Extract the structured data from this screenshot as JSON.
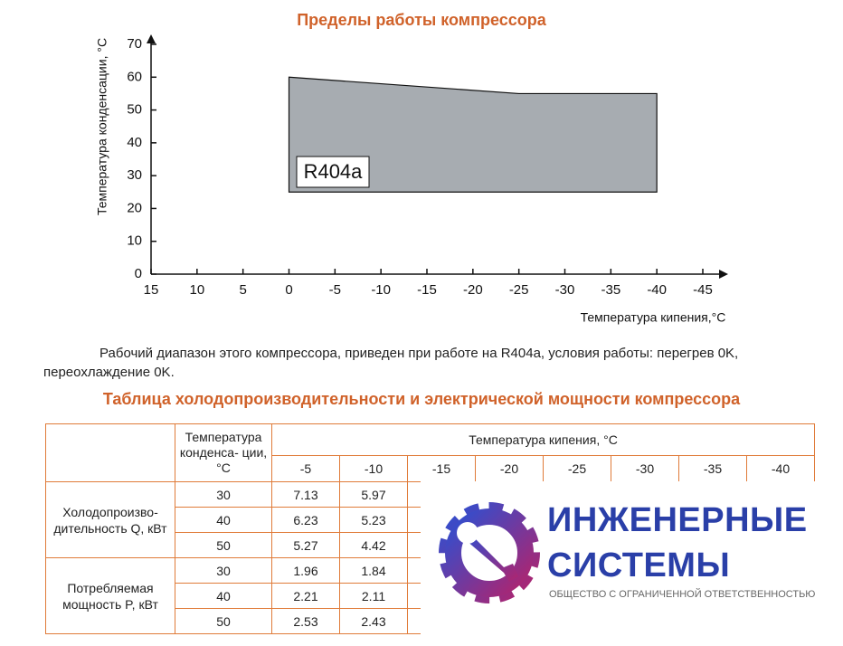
{
  "title": "Пределы работы компрессора",
  "chart_data": {
    "type": "polygon",
    "x_label": "Температура кипения,°C",
    "y_label": "Температура конденсации, °C",
    "x": [
      0,
      -25,
      -40,
      -40,
      0
    ],
    "values": [
      60,
      55,
      55,
      25,
      25
    ],
    "color": "#a7acb1",
    "annotation": "R404a",
    "xlim": [
      15,
      -45
    ],
    "ylim": [
      0,
      70
    ],
    "xticks": [
      15,
      10,
      5,
      0,
      -5,
      -10,
      -15,
      -20,
      -25,
      -30,
      -35,
      -40,
      -45
    ],
    "yticks": [
      0,
      10,
      20,
      30,
      40,
      50,
      60,
      70
    ]
  },
  "note": "Рабочий диапазон этого компрессора, приведен при работе на R404a, условия работы: перегрев 0K, переохлаждение 0K.",
  "table": {
    "title": "Таблица холодопроизводительности и электрической мощности компрессора",
    "condensation_header": "Температура конденса- ции, °C",
    "evaporation_header": "Температура кипения, °C",
    "columns": [
      -5,
      -10,
      -15,
      -20,
      -25,
      -30,
      -35,
      -40
    ],
    "groups": [
      {
        "label": "Холодопроизво- дительность Q, кВт",
        "rows": [
          {
            "tc": 30,
            "values": [
              7.13,
              5.97
            ]
          },
          {
            "tc": 40,
            "values": [
              6.23,
              5.23
            ]
          },
          {
            "tc": 50,
            "values": [
              5.27,
              4.42
            ]
          }
        ]
      },
      {
        "label": "Потребляемая мощность P, кВт",
        "rows": [
          {
            "tc": 30,
            "values": [
              1.96,
              1.84
            ]
          },
          {
            "tc": 40,
            "values": [
              2.21,
              2.11
            ]
          },
          {
            "tc": 50,
            "values": [
              2.53,
              2.43
            ]
          }
        ]
      }
    ]
  },
  "logo": {
    "line1": "ИНЖЕНЕРНЫЕ",
    "line2": "СИСТЕМЫ",
    "subtitle": "ОБЩЕСТВО С ОГРАНИЧЕННОЙ ОТВЕТСТВЕННОСТЬЮ"
  }
}
